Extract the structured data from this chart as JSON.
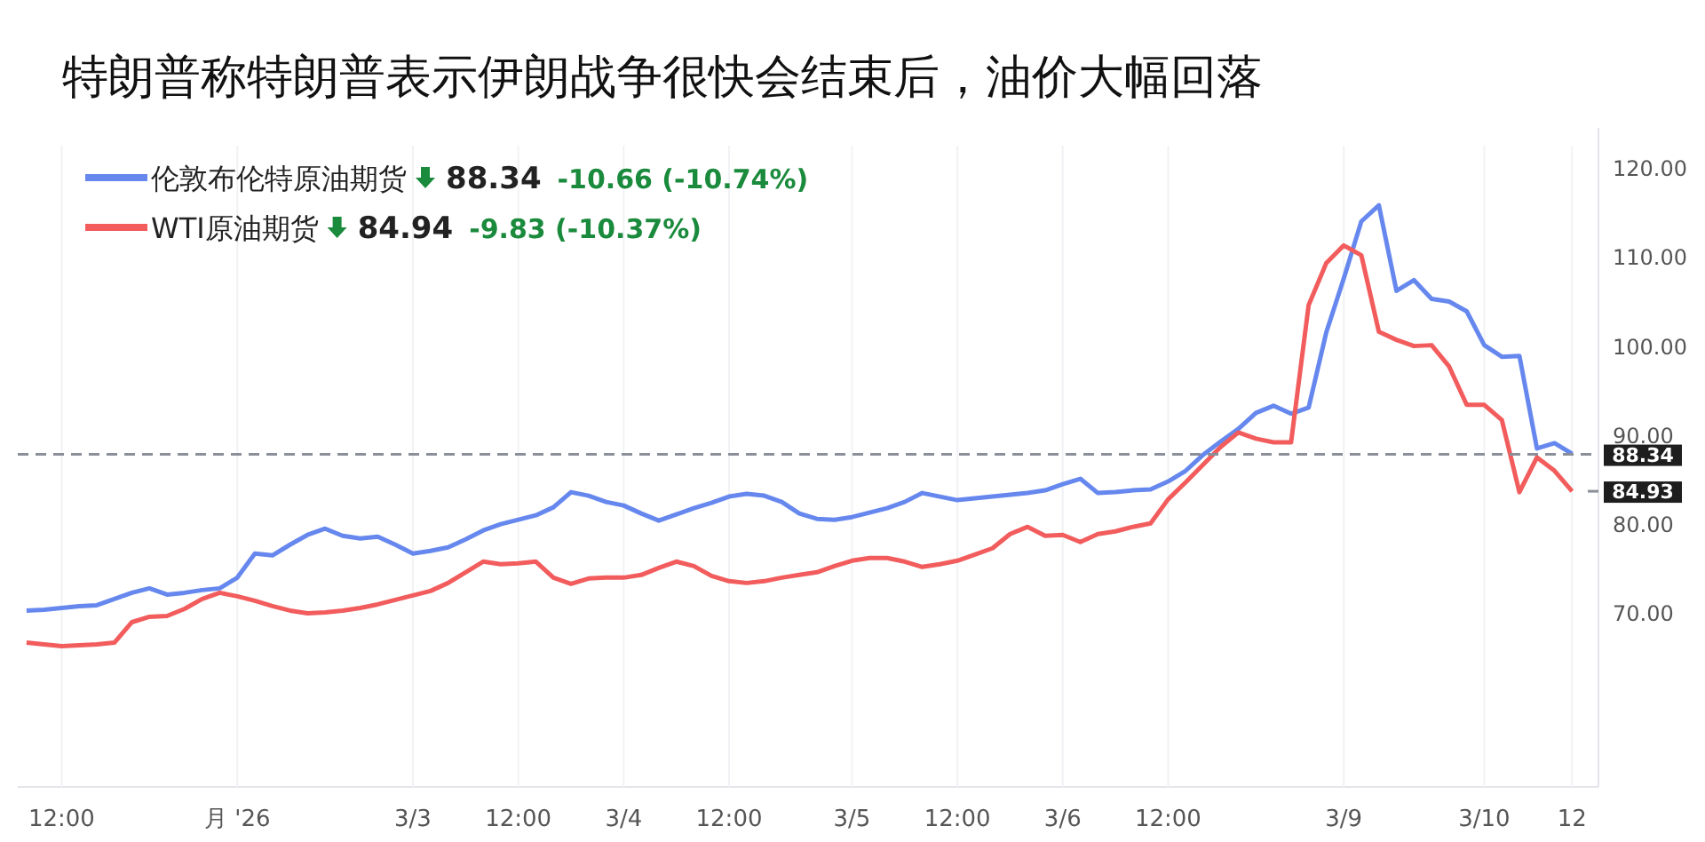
{
  "chart_data": {
    "type": "line",
    "title": "特朗普称特朗普表示伊朗战争很快会结束后，油价大幅回落",
    "categories": [
      null,
      null,
      "12:00",
      null,
      null,
      null,
      null,
      null,
      null,
      null,
      null,
      null,
      "月 '26",
      null,
      null,
      null,
      null,
      null,
      null,
      null,
      null,
      null,
      "3/3",
      null,
      null,
      null,
      null,
      null,
      "12:00",
      null,
      null,
      null,
      null,
      null,
      "3/4",
      null,
      null,
      null,
      null,
      null,
      "12:00",
      null,
      null,
      null,
      null,
      null,
      null,
      "3/5",
      null,
      null,
      null,
      null,
      null,
      "12:00",
      null,
      null,
      null,
      null,
      null,
      "3/6",
      null,
      null,
      null,
      null,
      null,
      "12:00",
      null,
      null,
      null,
      null,
      null,
      null,
      null,
      null,
      null,
      "3/9",
      null,
      null,
      null,
      null,
      null,
      null,
      null,
      "3/10",
      null,
      null,
      null,
      null,
      "12",
      null
    ],
    "ylim": [
      51,
      123
    ],
    "yticks": [
      {
        "value": 70,
        "label": "70.00"
      },
      {
        "value": 80,
        "label": "80.00"
      },
      {
        "value": 90,
        "label": "90.00"
      },
      {
        "value": 100,
        "label": "100.00"
      },
      {
        "value": 110,
        "label": "110.00"
      },
      {
        "value": 120,
        "label": "120.00"
      }
    ],
    "grid": "x",
    "legend": "top left",
    "line_style": "solid",
    "marker": "none",
    "annotations": [
      "88.34",
      "-10.66 (-10.74%)",
      "84.94",
      "-9.83 (-10.37%)",
      "84.93"
    ],
    "ref_lines": [
      {
        "axis": "y",
        "value": 88.34,
        "label": "88.34",
        "color": "#8a8f99",
        "line_style": "dashed"
      }
    ],
    "series": [
      {
        "name": "伦敦布伦特原油期货",
        "color": "#6688ee",
        "values": [
          70.8,
          70.9,
          71.1,
          71.3,
          71.4,
          72.1,
          72.8,
          73.3,
          72.6,
          72.8,
          73.1,
          73.3,
          74.5,
          77.2,
          77.0,
          78.2,
          79.3,
          80.0,
          79.2,
          78.9,
          79.1,
          78.2,
          77.2,
          77.5,
          77.9,
          78.8,
          79.8,
          80.5,
          81.0,
          81.5,
          82.4,
          84.1,
          83.7,
          83.0,
          82.6,
          81.7,
          80.9,
          81.6,
          82.3,
          82.9,
          83.6,
          83.9,
          83.7,
          83.0,
          81.7,
          81.1,
          81.0,
          81.3,
          81.8,
          82.3,
          83.0,
          84.0,
          83.6,
          83.2,
          83.4,
          83.6,
          83.8,
          84.0,
          84.3,
          85.0,
          85.6,
          84.0,
          84.1,
          84.3,
          84.4,
          85.3,
          86.5,
          88.3,
          89.8,
          91.2,
          93.0,
          93.8,
          92.9,
          93.6,
          102.0,
          108.1,
          114.5,
          116.3,
          106.7,
          107.9,
          105.8,
          105.5,
          104.4,
          100.6,
          99.3,
          99.4,
          89.0,
          89.6,
          88.4,
          null
        ]
      },
      {
        "name": "WTI原油期货",
        "color": "#f25c5c",
        "values": [
          67.2,
          67.0,
          66.8,
          66.9,
          67.0,
          67.2,
          69.5,
          70.1,
          70.2,
          71.0,
          72.1,
          72.8,
          72.4,
          71.9,
          71.3,
          70.8,
          70.5,
          70.6,
          70.8,
          71.1,
          71.5,
          72.0,
          72.5,
          73.0,
          73.9,
          75.1,
          76.3,
          76.0,
          76.1,
          76.3,
          74.5,
          73.8,
          74.4,
          74.5,
          74.5,
          74.8,
          75.6,
          76.3,
          75.8,
          74.7,
          74.1,
          73.9,
          74.1,
          74.5,
          74.8,
          75.1,
          75.8,
          76.4,
          76.7,
          76.7,
          76.3,
          75.7,
          76.0,
          76.4,
          77.1,
          77.8,
          79.4,
          80.2,
          79.2,
          79.3,
          78.5,
          79.4,
          79.7,
          80.2,
          80.6,
          83.3,
          85.2,
          87.2,
          89.2,
          90.8,
          90.1,
          89.7,
          89.7,
          105.1,
          109.8,
          111.8,
          110.7,
          102.1,
          101.2,
          100.5,
          100.6,
          98.2,
          93.9,
          93.9,
          92.2,
          84.1,
          88.0,
          86.5,
          84.2,
          null
        ]
      }
    ]
  }
}
